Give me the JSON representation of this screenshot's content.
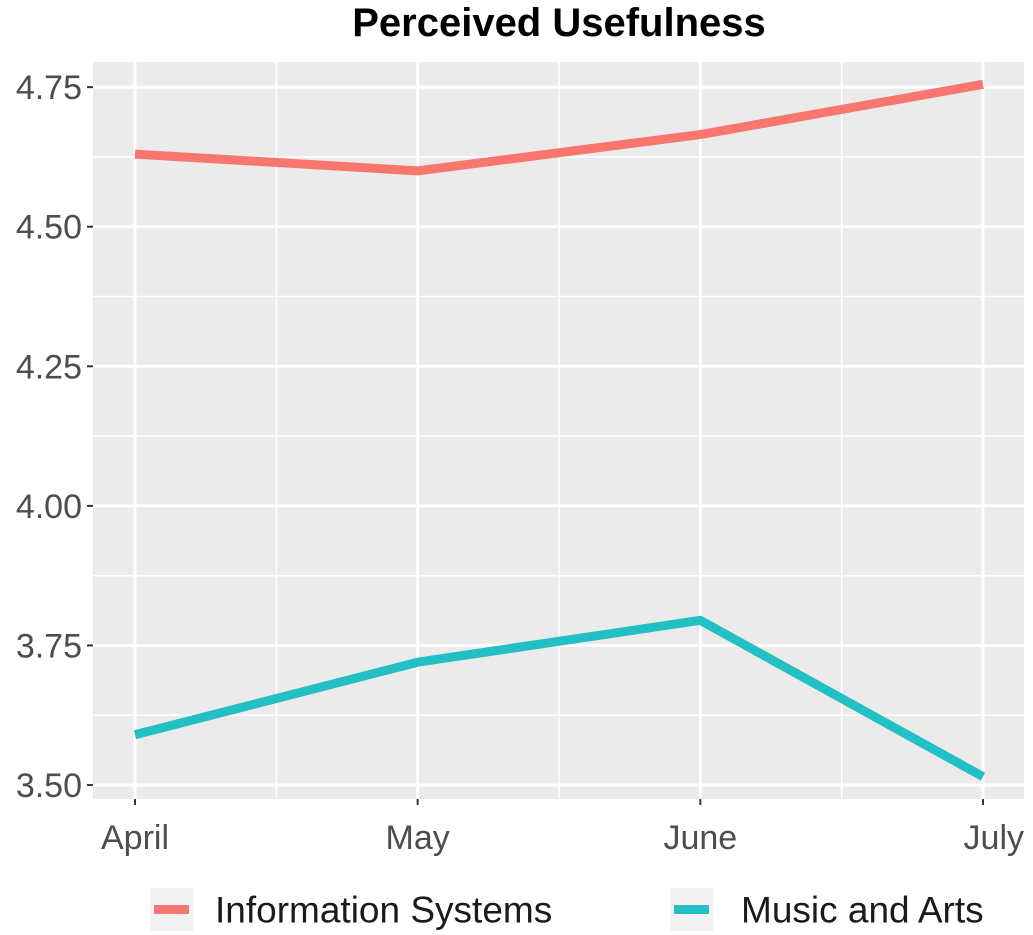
{
  "chart_data": {
    "type": "line",
    "title": "Perceived Usefulness",
    "xlabel": "",
    "ylabel": "",
    "categories": [
      "April",
      "May",
      "June",
      "July"
    ],
    "series": [
      {
        "name": "Information Systems",
        "color": "#F8766D",
        "values": [
          4.63,
          4.6,
          4.665,
          4.755
        ]
      },
      {
        "name": "Music and Arts",
        "color": "#22BFC4",
        "values": [
          3.59,
          3.72,
          3.795,
          3.515
        ]
      }
    ],
    "ylim": [
      3.475,
      4.795
    ],
    "yticks": [
      "3.50",
      "3.75",
      "4.00",
      "4.25",
      "4.50",
      "4.75"
    ],
    "grid": true,
    "legend_position": "bottom",
    "panel_background": "#EBEBEB",
    "grid_color": "#FFFFFF"
  }
}
